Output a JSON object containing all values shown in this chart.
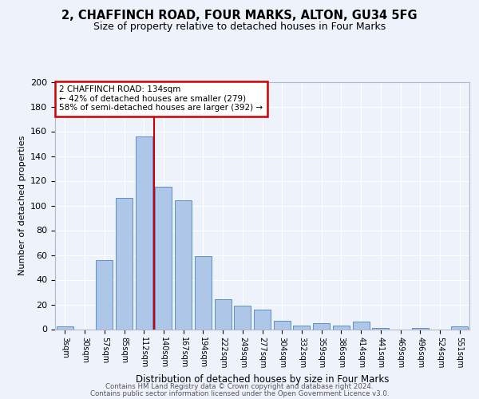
{
  "title": "2, CHAFFINCH ROAD, FOUR MARKS, ALTON, GU34 5FG",
  "subtitle": "Size of property relative to detached houses in Four Marks",
  "xlabel": "Distribution of detached houses by size in Four Marks",
  "ylabel": "Number of detached properties",
  "bar_labels": [
    "3sqm",
    "30sqm",
    "57sqm",
    "85sqm",
    "112sqm",
    "140sqm",
    "167sqm",
    "194sqm",
    "222sqm",
    "249sqm",
    "277sqm",
    "304sqm",
    "332sqm",
    "359sqm",
    "386sqm",
    "414sqm",
    "441sqm",
    "469sqm",
    "496sqm",
    "524sqm",
    "551sqm"
  ],
  "bar_heights": [
    2,
    0,
    56,
    106,
    156,
    115,
    104,
    59,
    24,
    19,
    16,
    7,
    3,
    5,
    3,
    6,
    1,
    0,
    1,
    0,
    2
  ],
  "bar_color": "#aec6e8",
  "bar_edge_color": "#5b8fc9",
  "property_line_x": 4.5,
  "annotation_line1": "2 CHAFFINCH ROAD: 134sqm",
  "annotation_line2": "← 42% of detached houses are smaller (279)",
  "annotation_line3": "58% of semi-detached houses are larger (392) →",
  "vline_color": "#cc0000",
  "annotation_box_edge": "#cc0000",
  "footnote1": "Contains HM Land Registry data © Crown copyright and database right 2024.",
  "footnote2": "Contains public sector information licensed under the Open Government Licence v3.0.",
  "background_color": "#eef2fb",
  "ylim": [
    0,
    200
  ],
  "yticks": [
    0,
    20,
    40,
    60,
    80,
    100,
    120,
    140,
    160,
    180,
    200
  ],
  "title_fontsize": 10.5,
  "subtitle_fontsize": 9,
  "ylabel_fontsize": 8,
  "xlabel_fontsize": 8.5,
  "tick_fontsize": 7,
  "annot_fontsize": 7.5,
  "footnote_fontsize": 6.2
}
